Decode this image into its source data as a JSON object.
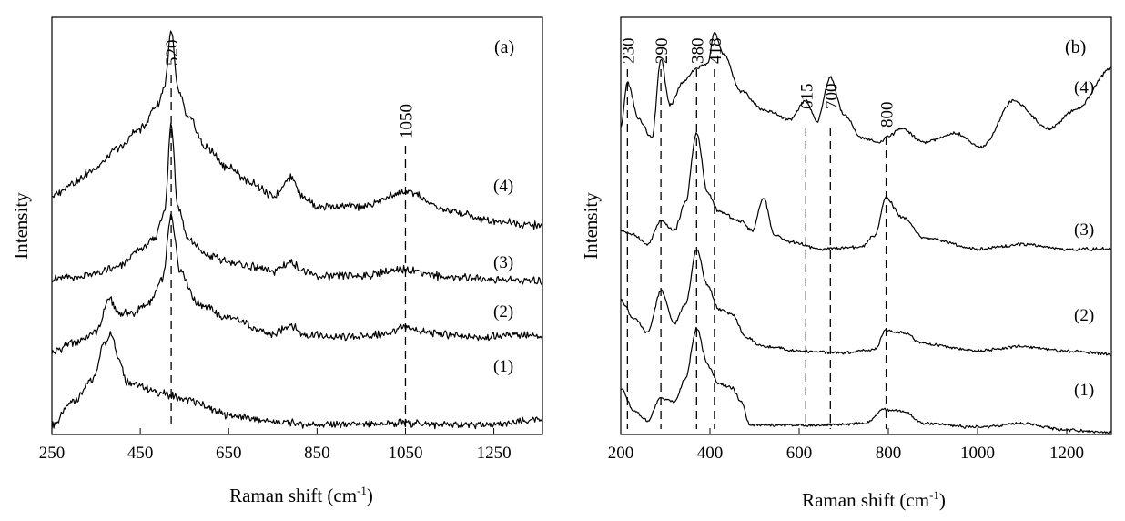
{
  "chart_data": [
    {
      "type": "line",
      "panel_label": "(a)",
      "xlabel": "Raman shift (cm",
      "xlabel_sup": "-1",
      "xlabel_close": ")",
      "ylabel": "Intensity",
      "xlim": [
        250,
        1360
      ],
      "ylim": [
        0,
        4.3
      ],
      "xticks": [
        250,
        450,
        650,
        850,
        1050,
        1250
      ],
      "peak_markers": [
        {
          "x": 520,
          "label": "520"
        },
        {
          "x": 1050,
          "label": "1050"
        }
      ],
      "series": [
        {
          "name": "(1)",
          "x": [
            250,
            300,
            340,
            370,
            385,
            400,
            420,
            450,
            500,
            560,
            650,
            750,
            850,
            950,
            1050,
            1150,
            1250,
            1360
          ],
          "y": [
            0.1,
            0.35,
            0.55,
            0.95,
            1.05,
            0.8,
            0.55,
            0.5,
            0.42,
            0.35,
            0.2,
            0.13,
            0.1,
            0.1,
            0.12,
            0.1,
            0.1,
            0.15
          ]
        },
        {
          "name": "(2)",
          "x": [
            250,
            300,
            350,
            380,
            400,
            430,
            470,
            500,
            520,
            540,
            580,
            650,
            750,
            790,
            820,
            900,
            1000,
            1050,
            1100,
            1200,
            1300,
            1360
          ],
          "y": [
            0.85,
            0.95,
            1.05,
            1.4,
            1.25,
            1.25,
            1.35,
            1.6,
            2.25,
            1.7,
            1.35,
            1.2,
            1.03,
            1.13,
            1.03,
            1.0,
            1.03,
            1.1,
            1.05,
            1.0,
            1.03,
            1.0
          ]
        },
        {
          "name": "(3)",
          "x": [
            250,
            300,
            350,
            400,
            450,
            480,
            505,
            520,
            535,
            560,
            600,
            650,
            700,
            750,
            790,
            820,
            850,
            950,
            1050,
            1150,
            1250,
            1360
          ],
          "y": [
            1.6,
            1.62,
            1.66,
            1.72,
            1.9,
            2.0,
            2.3,
            3.2,
            2.35,
            2.0,
            1.85,
            1.78,
            1.73,
            1.68,
            1.78,
            1.68,
            1.63,
            1.64,
            1.7,
            1.62,
            1.6,
            1.58
          ]
        },
        {
          "name": "(4)",
          "x": [
            250,
            300,
            350,
            400,
            450,
            490,
            505,
            520,
            535,
            560,
            600,
            650,
            700,
            750,
            790,
            820,
            850,
            950,
            1050,
            1150,
            1250,
            1360
          ],
          "y": [
            2.45,
            2.6,
            2.75,
            2.95,
            3.15,
            3.4,
            3.6,
            4.15,
            3.55,
            3.25,
            2.95,
            2.75,
            2.6,
            2.45,
            2.65,
            2.45,
            2.35,
            2.35,
            2.5,
            2.3,
            2.2,
            2.15
          ]
        }
      ]
    },
    {
      "type": "line",
      "panel_label": "(b)",
      "xlabel": "Raman shift (cm",
      "xlabel_sup": "-1",
      "xlabel_close": ")",
      "ylabel": "Intensity",
      "xlim": [
        200,
        1300
      ],
      "ylim": [
        0,
        4.5
      ],
      "xticks": [
        200,
        400,
        600,
        800,
        1000,
        1200
      ],
      "peak_markers": [
        {
          "x": 215,
          "label": "230"
        },
        {
          "x": 290,
          "label": "290"
        },
        {
          "x": 370,
          "label": "380"
        },
        {
          "x": 410,
          "label": "418"
        },
        {
          "x": 615,
          "label": "615"
        },
        {
          "x": 670,
          "label": "700"
        },
        {
          "x": 795,
          "label": "800"
        }
      ],
      "series": [
        {
          "name": "(1)",
          "x": [
            200,
            230,
            260,
            290,
            320,
            345,
            370,
            395,
            420,
            450,
            470,
            490,
            550,
            650,
            750,
            790,
            830,
            880,
            1000,
            1100,
            1200,
            1300
          ],
          "y": [
            0.5,
            0.25,
            0.15,
            0.4,
            0.35,
            0.6,
            1.15,
            0.75,
            0.55,
            0.5,
            0.35,
            0.1,
            0.1,
            0.1,
            0.12,
            0.27,
            0.25,
            0.12,
            0.08,
            0.12,
            0.05,
            0.02
          ]
        },
        {
          "name": "(2)",
          "x": [
            200,
            230,
            260,
            290,
            320,
            345,
            370,
            395,
            420,
            450,
            480,
            520,
            600,
            700,
            770,
            795,
            830,
            880,
            1000,
            1100,
            1200,
            1300
          ],
          "y": [
            1.45,
            1.25,
            1.1,
            1.55,
            1.2,
            1.4,
            2.0,
            1.6,
            1.35,
            1.3,
            1.05,
            0.95,
            0.9,
            0.88,
            0.92,
            1.12,
            1.1,
            0.98,
            0.9,
            0.95,
            0.9,
            0.87
          ]
        },
        {
          "name": "(3)",
          "x": [
            200,
            230,
            260,
            290,
            320,
            345,
            370,
            395,
            420,
            470,
            495,
            520,
            545,
            580,
            650,
            740,
            770,
            795,
            830,
            880,
            1000,
            1100,
            1200,
            1300
          ],
          "y": [
            2.2,
            2.15,
            2.05,
            2.3,
            2.2,
            2.5,
            3.25,
            2.6,
            2.4,
            2.3,
            2.2,
            2.55,
            2.15,
            2.08,
            2.0,
            2.02,
            2.15,
            2.55,
            2.35,
            2.12,
            2.0,
            2.05,
            2.0,
            2.0
          ]
        },
        {
          "name": "(4)",
          "x": [
            200,
            215,
            240,
            270,
            290,
            310,
            340,
            370,
            395,
            410,
            430,
            470,
            520,
            580,
            615,
            640,
            670,
            700,
            740,
            780,
            800,
            830,
            880,
            950,
            1010,
            1080,
            1160,
            1220,
            1300
          ],
          "y": [
            3.3,
            3.8,
            3.4,
            3.2,
            4.05,
            3.55,
            3.8,
            3.95,
            4.0,
            4.35,
            4.1,
            3.7,
            3.5,
            3.4,
            3.6,
            3.38,
            3.85,
            3.45,
            3.2,
            3.15,
            3.22,
            3.3,
            3.15,
            3.25,
            3.1,
            3.6,
            3.3,
            3.5,
            3.95
          ]
        }
      ]
    }
  ]
}
